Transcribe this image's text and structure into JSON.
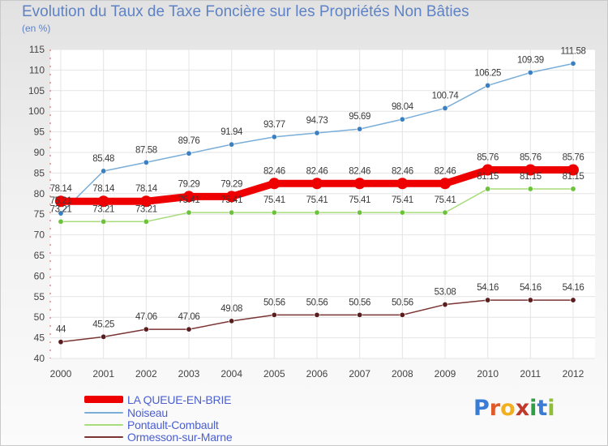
{
  "title": "Evolution du Taux de Taxe Foncière sur les Propriétés Non Bâties",
  "unit_label": "(en %)",
  "logo": {
    "text": "Proxiti",
    "letters": [
      {
        "ch": "P",
        "color": "#3a7bd5"
      },
      {
        "ch": "r",
        "color": "#e0592a"
      },
      {
        "ch": "o",
        "color": "#f2b01e"
      },
      {
        "ch": "x",
        "color": "#c0392b"
      },
      {
        "ch": "i",
        "color": "#2f9e44"
      },
      {
        "ch": "t",
        "color": "#3a7bd5"
      },
      {
        "ch": "i",
        "color": "#8fbf3a"
      }
    ]
  },
  "chart_data": {
    "type": "line",
    "title": "Evolution du Taux de Taxe Foncière sur les Propriétés Non Bâties",
    "ylabel": "(en %)",
    "xlabel": "",
    "ylim": [
      40,
      115
    ],
    "yticks": [
      40,
      45,
      50,
      55,
      60,
      65,
      70,
      75,
      80,
      85,
      90,
      95,
      100,
      105,
      110,
      115
    ],
    "x": [
      "2000",
      "2001",
      "2002",
      "2003",
      "2004",
      "2005",
      "2006",
      "2007",
      "2008",
      "2009",
      "2010",
      "2011",
      "2012"
    ],
    "grid": true,
    "legend_position": "bottom-left",
    "series": [
      {
        "name": "Noiseau",
        "color": "#7aaed8",
        "marker_color": "#3b80c0",
        "values": [
          75.21,
          85.48,
          87.58,
          89.76,
          91.94,
          93.77,
          94.73,
          95.69,
          98.04,
          100.74,
          106.25,
          109.39,
          111.58
        ],
        "labels": [
          "75.21",
          "85.48",
          "87.58",
          "89.76",
          "91.94",
          "93.77",
          "94.73",
          "95.69",
          "98.04",
          "100.74",
          "106.25",
          "109.39",
          "111.58"
        ]
      },
      {
        "name": "Pontault-Combault",
        "color": "#a8dc7c",
        "marker_color": "#6cc23a",
        "values": [
          73.21,
          73.21,
          73.21,
          75.41,
          75.41,
          75.41,
          75.41,
          75.41,
          75.41,
          75.41,
          81.15,
          81.15,
          81.15
        ],
        "labels": [
          "73.21",
          "73.21",
          "73.21",
          "75.41",
          "75.41",
          "75.41",
          "75.41",
          "75.41",
          "75.41",
          "75.41",
          "81.15",
          "81.15",
          "81.15"
        ]
      },
      {
        "name": "Ormesson-sur-Marne",
        "color": "#7a3434",
        "marker_color": "#5a1e1e",
        "values": [
          44,
          45.25,
          47.06,
          47.06,
          49.08,
          50.56,
          50.56,
          50.56,
          50.56,
          53.08,
          54.16,
          54.16,
          54.16
        ],
        "labels": [
          "44",
          "45.25",
          "47.06",
          "47.06",
          "49.08",
          "50.56",
          "50.56",
          "50.56",
          "50.56",
          "53.08",
          "54.16",
          "54.16",
          "54.16"
        ]
      },
      {
        "name": "LA QUEUE-EN-BRIE",
        "color": "#ee0000",
        "marker_color": "#ee0000",
        "thick": true,
        "values": [
          78.14,
          78.14,
          78.14,
          79.29,
          79.29,
          82.46,
          82.46,
          82.46,
          82.46,
          82.46,
          85.76,
          85.76,
          85.76
        ],
        "labels": [
          "78.14",
          "78.14",
          "78.14",
          "79.29",
          "79.29",
          "82.46",
          "82.46",
          "82.46",
          "82.46",
          "82.46",
          "85.76",
          "85.76",
          "85.76"
        ]
      }
    ],
    "legend": [
      {
        "name": "LA QUEUE-EN-BRIE",
        "color": "#ee0000",
        "thick": true
      },
      {
        "name": "Noiseau",
        "color": "#7aaed8"
      },
      {
        "name": "Pontault-Combault",
        "color": "#a8dc7c"
      },
      {
        "name": "Ormesson-sur-Marne",
        "color": "#7a3434"
      }
    ]
  }
}
